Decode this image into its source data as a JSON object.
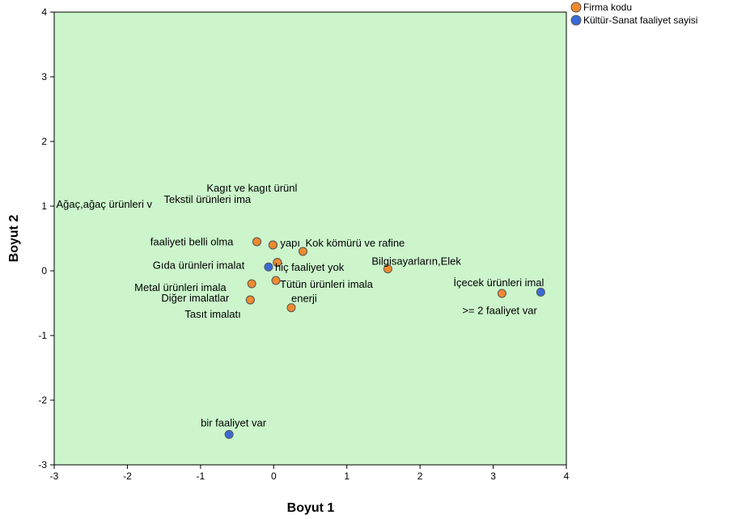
{
  "chart_data": {
    "type": "scatter",
    "xlabel": "Boyut 1",
    "ylabel": "Boyut 2",
    "xlim": [
      -3,
      4
    ],
    "ylim": [
      -3,
      4
    ],
    "xticks": [
      "-3",
      "-2",
      "-1",
      "0",
      "1",
      "2",
      "3",
      "4"
    ],
    "yticks": [
      "-3",
      "-2",
      "-1",
      "0",
      "1",
      "2",
      "3",
      "4"
    ],
    "plot_background": "#ccf5cc",
    "legend_position": "top-right",
    "series": [
      {
        "name": "Firma kodu",
        "color": "#ef8a2e",
        "points": [
          {
            "label": "Kagıt ve kagıt ürünl",
            "x": -0.01,
            "y": 0.4
          },
          {
            "label": "Tekstil ürünleri ima",
            "x": -0.23,
            "y": 0.45
          },
          {
            "label": "Ağaç,ağaç ürünleri v",
            "x": -0.23,
            "y": 0.45
          },
          {
            "label": "yapı",
            "x": -0.01,
            "y": 0.4
          },
          {
            "label": "Kok kömürü ve rafine",
            "x": 0.4,
            "y": 0.3
          },
          {
            "label": "faaliyeti belli olma",
            "x": 0.05,
            "y": 0.13
          },
          {
            "label": "Gıda ürünleri imalat",
            "x": 0.05,
            "y": 0.13
          },
          {
            "label": "Bilgisayarların,Elek",
            "x": 1.56,
            "y": 0.03
          },
          {
            "label": "Metal ürünleri imala",
            "x": -0.3,
            "y": -0.2
          },
          {
            "label": "Tütün ürünleri imala",
            "x": 0.03,
            "y": -0.15
          },
          {
            "label": "Diğer imalatlar",
            "x": -0.32,
            "y": -0.45
          },
          {
            "label": "enerji",
            "x": 0.24,
            "y": -0.57
          },
          {
            "label": "Tasıt imalatı",
            "x": -0.32,
            "y": -0.45
          },
          {
            "label": "İçecek ürünleri imal",
            "x": 3.12,
            "y": -0.35
          }
        ]
      },
      {
        "name": "Kültür-Sanat faaliyet sayisi",
        "color": "#3a6ad6",
        "points": [
          {
            "label": "hiç faaliyet yok",
            "x": -0.07,
            "y": 0.06
          },
          {
            "label": ">= 2 faaliyet var",
            "x": 3.65,
            "y": -0.33
          },
          {
            "label": "bir faaliyet var",
            "x": -0.61,
            "y": -2.53
          }
        ]
      }
    ]
  }
}
